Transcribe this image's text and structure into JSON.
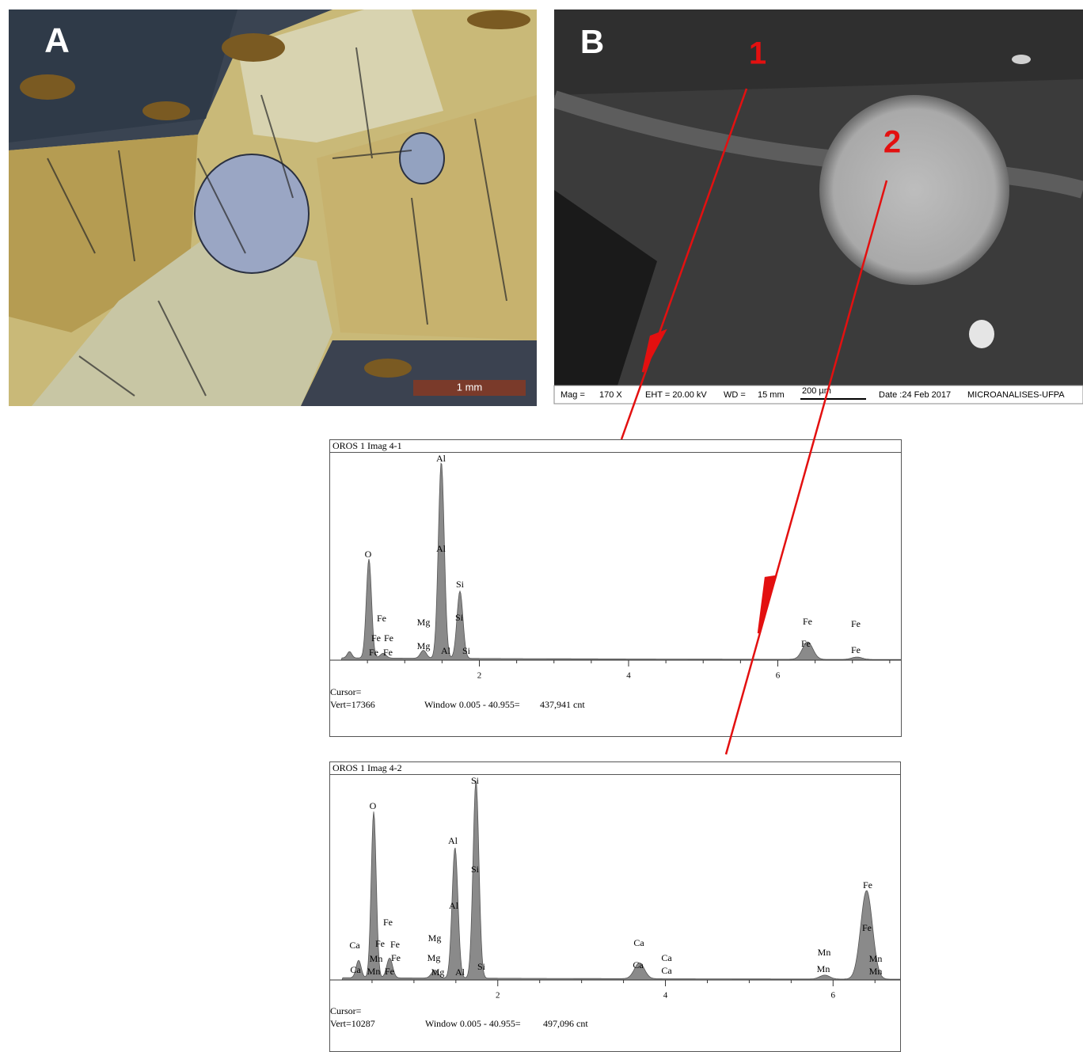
{
  "panel_a": {
    "label": "A",
    "scale_bar": "1 mm"
  },
  "panel_b": {
    "label": "B",
    "points": [
      "1",
      "2"
    ],
    "info": [
      "Mag =",
      "170 X",
      "EHT = 20.00 kV",
      "WD =",
      "15 mm",
      "200 µm",
      "Date :24 Feb 2017",
      "MICROANALISES-UFPA"
    ]
  },
  "spectra": [
    {
      "title": "OROS 1 Imag 4-1",
      "xlim": [
        0,
        7.65
      ],
      "xticks": [
        2,
        4,
        6
      ],
      "peak_labels": [
        "Al",
        "Al",
        "O",
        "Si",
        "Fe",
        "Mg",
        "Si",
        "Fe",
        "Fe",
        "Fe",
        "Fe",
        "Mg",
        "Al",
        "Si",
        "Fe",
        "Fe",
        "Fe",
        "Fe"
      ],
      "cursor": "Cursor=",
      "vert": "Vert=17366",
      "window": "Window 0.005 - 40.955=",
      "count": "437,941 cnt"
    },
    {
      "title": "OROS 1 Imag 4-2",
      "xlim": [
        0,
        6.8
      ],
      "xticks": [
        2,
        4,
        6
      ],
      "peak_labels": [
        "Si",
        "O",
        "Al",
        "Si",
        "Al",
        "Fe",
        "Ca",
        "Fe",
        "Fe",
        "Mg",
        "Mn",
        "Fe",
        "Mg",
        "Ca",
        "Mn",
        "Fe",
        "Mg",
        "Al",
        "Si",
        "Ca",
        "Ca",
        "Ca",
        "Ca",
        "Mn",
        "Mn",
        "Fe",
        "Fe",
        "Mn",
        "Mn"
      ],
      "cursor": "Cursor=",
      "vert": "Vert=10287",
      "window": "Window 0.005 - 40.955=",
      "count": "497,096 cnt"
    }
  ]
}
